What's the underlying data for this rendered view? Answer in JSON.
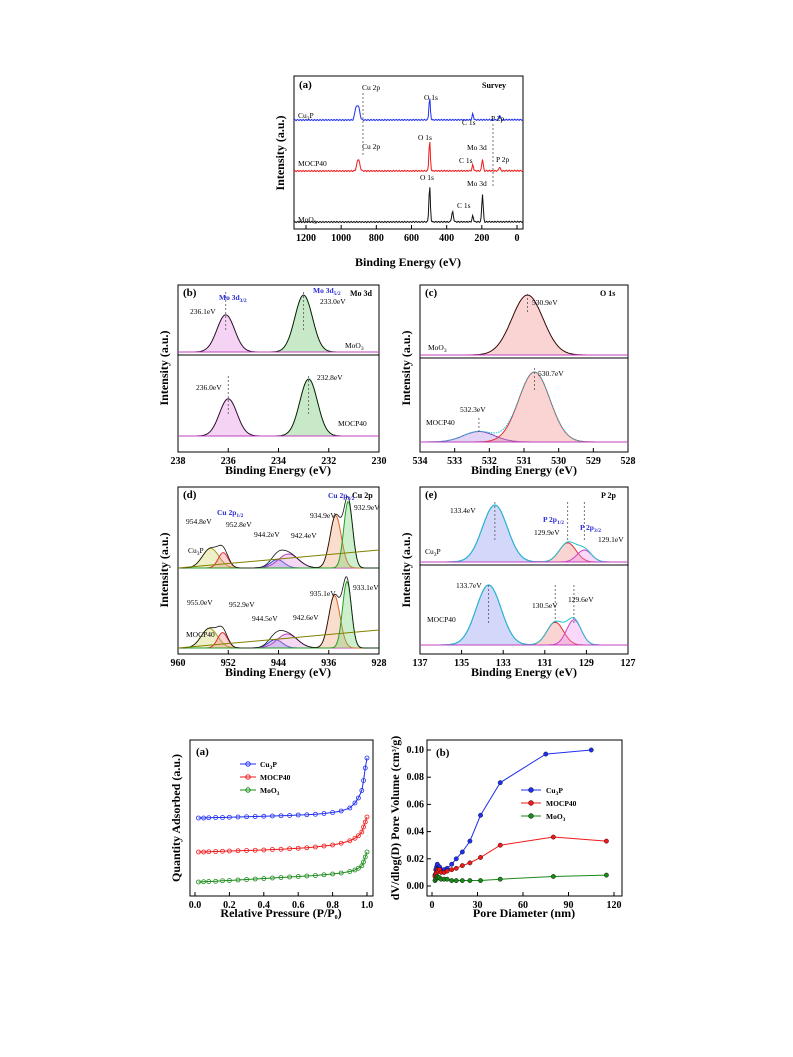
{
  "colors": {
    "blue": "#1f2ff0",
    "red": "#f01818",
    "black": "#111111",
    "green": "#1a8a1a",
    "violet": "#c040c0"
  },
  "charts": [
    {
      "panel": "(a)",
      "title": "Survey",
      "type": "line",
      "xlabel": "Binding Energy (eV)",
      "ylabel": "Intensity (a.u.)",
      "xlim": [
        1300,
        0
      ],
      "xticks": [
        "1200",
        "1000",
        "800",
        "600",
        "400",
        "200",
        "0"
      ],
      "series": [
        {
          "name": "Cu3P",
          "label_main": "Cu",
          "label_sub": "3",
          "label_end": "P"
        },
        {
          "name": "MOCP40",
          "label_main": "MOCP40",
          "label_sub": "",
          "label_end": ""
        },
        {
          "name": "MoO3",
          "label_main": "MoO",
          "label_sub": "3",
          "label_end": ""
        }
      ],
      "annotations": [
        "Cu 2p",
        "O 1s",
        "C 1s",
        "P 2p",
        "Cu 2p",
        "O 1s",
        "Mo 3d",
        "C 1s",
        "P 2p",
        "O 1s",
        "Mo 3d",
        "C 1s"
      ]
    },
    {
      "panel": "(b)",
      "title": "Mo 3d",
      "type": "line",
      "xlabel": "Binding Energy (eV)",
      "ylabel": "Intensity (a.u.)",
      "xlim": [
        238,
        230
      ],
      "xticks": [
        "238",
        "236",
        "234",
        "232",
        "230"
      ],
      "series": [
        {
          "name": "MoO3"
        },
        {
          "name": "MOCP40"
        }
      ],
      "peaks": {
        "MoO3": [
          236.1,
          233.0
        ],
        "MOCP40": [
          236.0,
          232.8
        ]
      },
      "annotations": [
        "Mo 3d3/2",
        "Mo 3d5/2",
        "236.1eV",
        "233.0eV",
        "236.0eV",
        "232.8eV"
      ]
    },
    {
      "panel": "(c)",
      "title": "O 1s",
      "type": "line",
      "xlabel": "Binding Energy (eV)",
      "ylabel": "Intensity (a.u.)",
      "xlim": [
        534,
        528
      ],
      "xticks": [
        "534",
        "533",
        "532",
        "531",
        "530",
        "529",
        "528"
      ],
      "series": [
        {
          "name": "MoO3"
        },
        {
          "name": "MOCP40"
        }
      ],
      "peaks": {
        "MoO3": [
          530.9
        ],
        "MOCP40": [
          530.7,
          532.3
        ]
      },
      "annotations": [
        "530.9eV",
        "530.7eV",
        "532.3eV"
      ]
    },
    {
      "panel": "(d)",
      "title": "Cu 2p",
      "type": "line",
      "xlabel": "Binding Energy (eV)",
      "ylabel": "Intensity (a.u.)",
      "xlim": [
        960,
        928
      ],
      "xticks": [
        "960",
        "952",
        "944",
        "936",
        "928"
      ],
      "series": [
        {
          "name": "Cu3P"
        },
        {
          "name": "MOCP40"
        }
      ],
      "peaks": {
        "Cu3P": [
          954.8,
          952.8,
          944.2,
          942.4,
          934.9,
          932.9
        ],
        "MOCP40": [
          955.0,
          952.9,
          944.5,
          942.6,
          935.1,
          933.1
        ]
      },
      "annotations": [
        "Cu 2p1/2",
        "Cu 2p3/2",
        "954.8eV",
        "952.8eV",
        "944.2eV",
        "942.4eV",
        "934.9eV",
        "932.9eV",
        "955.0eV",
        "952.9eV",
        "944.5eV",
        "942.6eV",
        "935.1eV",
        "933.1eV"
      ]
    },
    {
      "panel": "(e)",
      "title": "P 2p",
      "type": "line",
      "xlabel": "Binding Energy (eV)",
      "ylabel": "Intensity (a.u.)",
      "xlim": [
        137,
        127
      ],
      "xticks": [
        "137",
        "135",
        "133",
        "131",
        "129",
        "127"
      ],
      "series": [
        {
          "name": "Cu3P"
        },
        {
          "name": "MOCP40"
        }
      ],
      "peaks": {
        "Cu3P": [
          133.4,
          129.9,
          129.1
        ],
        "MOCP40": [
          133.7,
          130.5,
          129.6
        ]
      },
      "annotations": [
        "P 2p1/2",
        "P 2p3/2",
        "133.4eV",
        "129.9eV",
        "129.1eV",
        "133.7eV",
        "130.5eV",
        "129.6eV"
      ]
    },
    {
      "panel": "(a)",
      "type": "line",
      "xlabel": "Relative Pressure (P/P0)",
      "ylabel": "Quantity Adsorbed (a.u.)",
      "xlim": [
        0,
        1
      ],
      "xticks": [
        "0.0",
        "0.2",
        "0.4",
        "0.6",
        "0.8",
        "1.0"
      ],
      "legend": "top-right",
      "series": [
        {
          "name": "Cu3P",
          "x": [
            0.02,
            0.05,
            0.08,
            0.12,
            0.16,
            0.2,
            0.25,
            0.3,
            0.35,
            0.4,
            0.45,
            0.5,
            0.55,
            0.6,
            0.65,
            0.7,
            0.75,
            0.8,
            0.85,
            0.9,
            0.93,
            0.95,
            0.97,
            0.98,
            0.99,
            1.0
          ],
          "y": [
            0.0,
            0.0,
            0.01,
            0.02,
            0.02,
            0.03,
            0.04,
            0.05,
            0.06,
            0.07,
            0.08,
            0.09,
            0.1,
            0.12,
            0.13,
            0.15,
            0.18,
            0.22,
            0.28,
            0.4,
            0.6,
            0.8,
            1.1,
            1.5,
            2.0,
            2.4
          ]
        },
        {
          "name": "MOCP40",
          "x": [
            0.02,
            0.05,
            0.08,
            0.12,
            0.16,
            0.2,
            0.25,
            0.3,
            0.35,
            0.4,
            0.45,
            0.5,
            0.55,
            0.6,
            0.65,
            0.7,
            0.75,
            0.8,
            0.85,
            0.9,
            0.93,
            0.95,
            0.97,
            0.98,
            0.99,
            1.0
          ],
          "y": [
            0.0,
            0.0,
            0.01,
            0.02,
            0.03,
            0.04,
            0.05,
            0.06,
            0.07,
            0.08,
            0.1,
            0.11,
            0.13,
            0.15,
            0.17,
            0.2,
            0.24,
            0.28,
            0.35,
            0.45,
            0.55,
            0.65,
            0.8,
            1.0,
            1.2,
            1.4
          ]
        },
        {
          "name": "MoO3",
          "x": [
            0.02,
            0.05,
            0.08,
            0.12,
            0.16,
            0.2,
            0.25,
            0.3,
            0.35,
            0.4,
            0.45,
            0.5,
            0.55,
            0.6,
            0.65,
            0.7,
            0.75,
            0.8,
            0.85,
            0.9,
            0.93,
            0.95,
            0.97,
            0.98,
            0.99,
            1.0
          ],
          "y": [
            0.0,
            0.01,
            0.02,
            0.03,
            0.05,
            0.06,
            0.08,
            0.1,
            0.12,
            0.14,
            0.16,
            0.18,
            0.2,
            0.22,
            0.24,
            0.26,
            0.29,
            0.32,
            0.36,
            0.42,
            0.48,
            0.55,
            0.65,
            0.8,
            1.0,
            1.2
          ]
        }
      ]
    },
    {
      "panel": "(b)",
      "type": "line",
      "xlabel": "Pore Diameter (nm)",
      "ylabel": "dV/dlog(D) Pore Volume (cm3/g)",
      "xlim": [
        0,
        120
      ],
      "ylim": [
        0,
        0.1
      ],
      "xticks": [
        "0",
        "30",
        "60",
        "90",
        "120"
      ],
      "yticks": [
        "0.00",
        "0.02",
        "0.04",
        "0.06",
        "0.08",
        "0.10"
      ],
      "legend": "center-right",
      "series": [
        {
          "name": "Cu3P",
          "x": [
            2,
            2.5,
            3,
            3.5,
            4,
            5,
            6,
            8,
            10,
            13,
            16,
            20,
            25,
            32,
            45,
            75,
            105
          ],
          "y": [
            0.008,
            0.012,
            0.014,
            0.016,
            0.013,
            0.014,
            0.012,
            0.012,
            0.013,
            0.016,
            0.02,
            0.025,
            0.033,
            0.052,
            0.076,
            0.097,
            0.1
          ]
        },
        {
          "name": "MOCP40",
          "x": [
            2,
            2.5,
            3,
            3.5,
            4,
            5,
            6,
            8,
            10,
            13,
            16,
            20,
            25,
            32,
            45,
            80,
            115
          ],
          "y": [
            0.007,
            0.009,
            0.01,
            0.012,
            0.011,
            0.012,
            0.01,
            0.01,
            0.011,
            0.012,
            0.013,
            0.015,
            0.017,
            0.021,
            0.03,
            0.036,
            0.033
          ]
        },
        {
          "name": "MoO3",
          "x": [
            2,
            2.5,
            3,
            3.5,
            4,
            5,
            6,
            8,
            10,
            13,
            16,
            20,
            25,
            32,
            45,
            80,
            115
          ],
          "y": [
            0.004,
            0.005,
            0.006,
            0.007,
            0.006,
            0.006,
            0.005,
            0.005,
            0.005,
            0.004,
            0.004,
            0.004,
            0.004,
            0.004,
            0.005,
            0.007,
            0.008
          ]
        }
      ]
    }
  ]
}
